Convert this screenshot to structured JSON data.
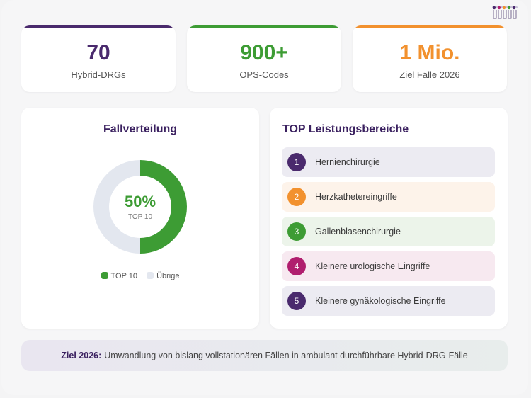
{
  "colors": {
    "purple": "#4a2a6d",
    "green": "#3d9c34",
    "orange": "#f2912e",
    "magenta": "#b01e6e",
    "gray": "#e3e7ef"
  },
  "stats": [
    {
      "value": "70",
      "label": "Hybrid-DRGs"
    },
    {
      "value": "900+",
      "label": "OPS-Codes"
    },
    {
      "value": "1 Mio.",
      "label": "Ziel Fälle 2026"
    }
  ],
  "chart_data": {
    "type": "pie",
    "title": "Fallverteilung",
    "center_value": "50%",
    "center_label": "TOP 10",
    "series": [
      {
        "name": "TOP 10",
        "value": 50,
        "color": "#3d9c34"
      },
      {
        "name": "Übrige",
        "value": 50,
        "color": "#e3e7ef"
      }
    ],
    "legend_position": "bottom"
  },
  "ranking": {
    "title": "TOP Leistungsbereiche",
    "items": [
      {
        "num": "1",
        "label": "Hernienchirurgie",
        "color": "#4a2a6d",
        "bg": "#ecebf2"
      },
      {
        "num": "2",
        "label": "Herzkathetereingriffe",
        "color": "#f2912e",
        "bg": "#fdf3ea"
      },
      {
        "num": "3",
        "label": "Gallenblasenchirurgie",
        "color": "#3d9c34",
        "bg": "#ecf4ea"
      },
      {
        "num": "4",
        "label": "Kleinere urologische Eingriffe",
        "color": "#b01e6e",
        "bg": "#f7e9f0"
      },
      {
        "num": "5",
        "label": "Kleinere gynäkologische Eingriffe",
        "color": "#4a2a6d",
        "bg": "#ecebf2"
      }
    ]
  },
  "footer": {
    "label": "Ziel 2026:",
    "text": "Umwandlung von bislang vollstationären Fällen in ambulant durchführbare Hybrid-DRG-Fälle"
  },
  "logo": {
    "icon": "brand-logo-icon"
  }
}
